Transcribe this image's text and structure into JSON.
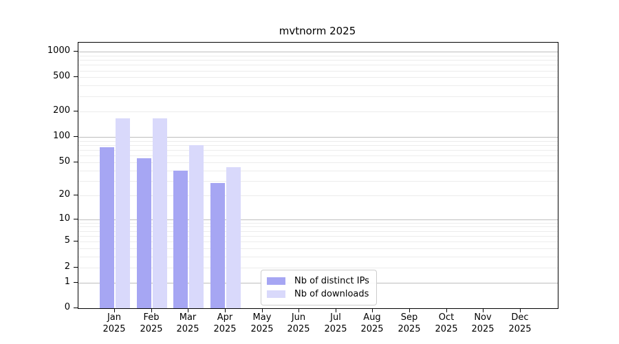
{
  "title": "mvtnorm 2025",
  "legend": {
    "items": [
      {
        "label": "Nb of distinct IPs",
        "color": "#a6a6f3"
      },
      {
        "label": "Nb of downloads",
        "color": "#d9d9fb"
      }
    ]
  },
  "y_axis": {
    "tick_labels": [
      "1000",
      "500",
      "200",
      "100",
      "50",
      "20",
      "10",
      "5",
      "2",
      "1",
      "0"
    ]
  },
  "x_axis": {
    "year": "2025",
    "months": [
      "Jan",
      "Feb",
      "Mar",
      "Apr",
      "May",
      "Jun",
      "Jul",
      "Aug",
      "Sep",
      "Oct",
      "Nov",
      "Dec"
    ]
  },
  "chart_data": {
    "type": "bar",
    "title": "mvtnorm 2025",
    "categories": [
      "Jan 2025",
      "Feb 2025",
      "Mar 2025",
      "Apr 2025",
      "May 2025",
      "Jun 2025",
      "Jul 2025",
      "Aug 2025",
      "Sep 2025",
      "Oct 2025",
      "Nov 2025",
      "Dec 2025"
    ],
    "series": [
      {
        "name": "Nb of distinct IPs",
        "color": "#a6a6f3",
        "values": [
          75,
          56,
          40,
          28,
          0,
          0,
          0,
          0,
          0,
          0,
          0,
          0
        ]
      },
      {
        "name": "Nb of downloads",
        "color": "#d9d9fb",
        "values": [
          165,
          165,
          80,
          44,
          0,
          0,
          0,
          0,
          0,
          0,
          0,
          0
        ]
      }
    ],
    "y_scale": "log1p",
    "y_ticks": [
      0,
      1,
      2,
      5,
      10,
      20,
      50,
      100,
      200,
      500,
      1000
    ],
    "ylim": [
      0,
      1274
    ],
    "grid": "horizontal",
    "grid_major_at": [
      1,
      10,
      100,
      1000
    ],
    "legend_position": "inside-bottom-left-of-center",
    "xlabel": "",
    "ylabel": ""
  }
}
